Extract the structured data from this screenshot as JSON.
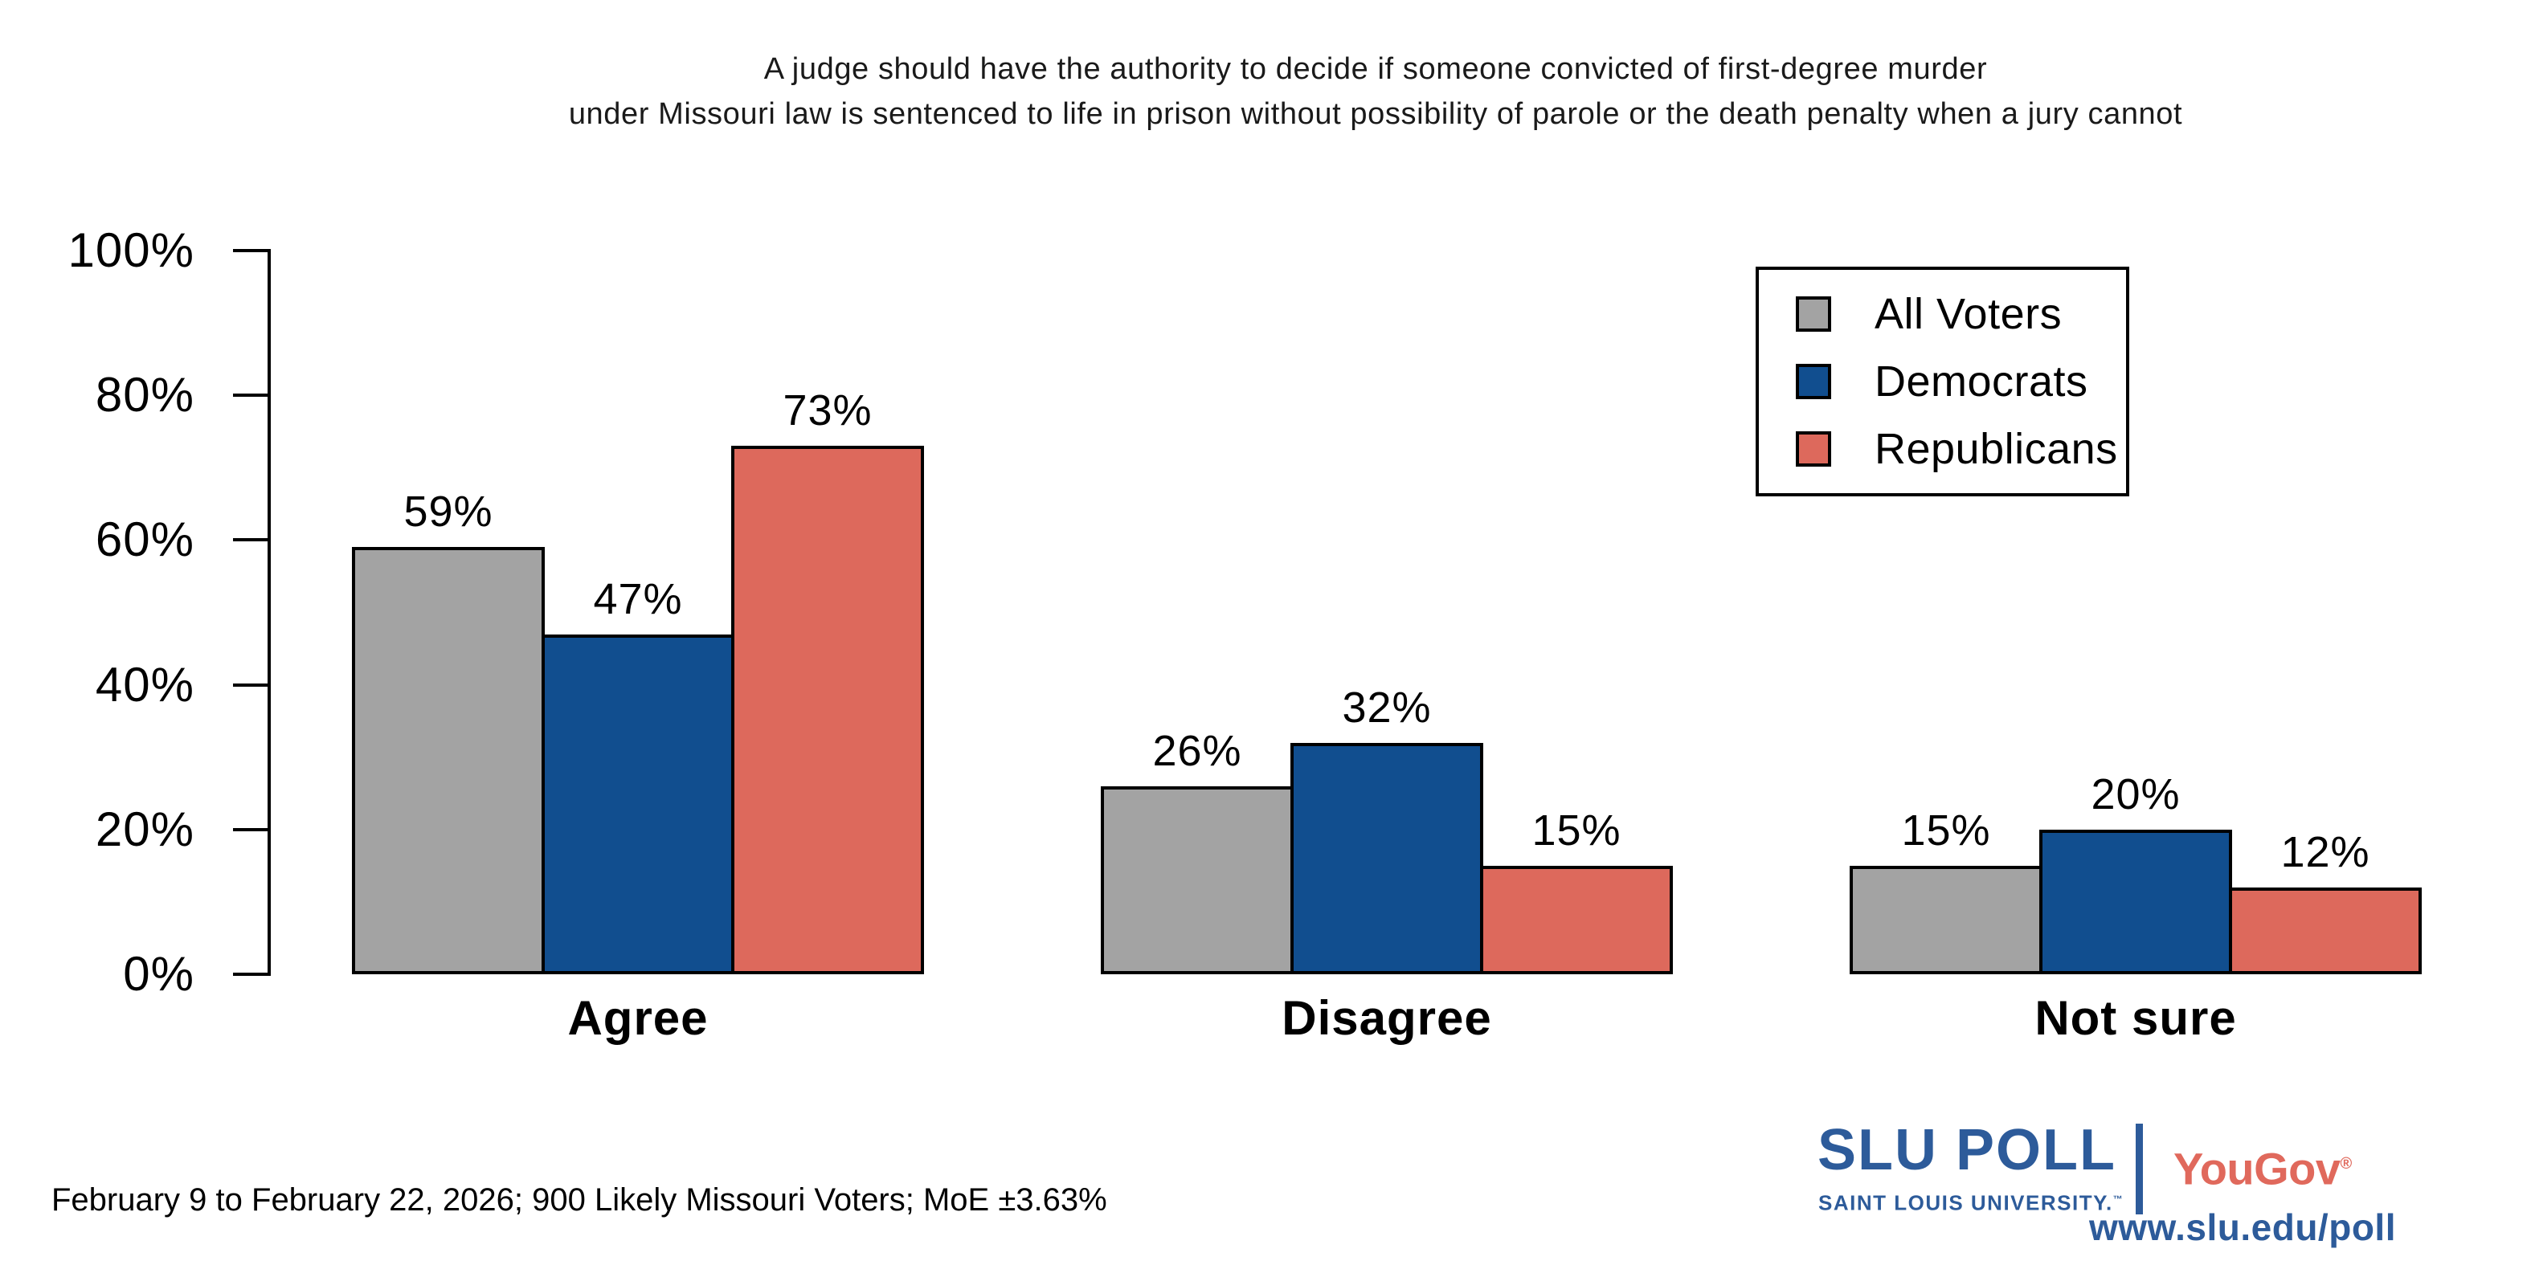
{
  "title": {
    "line1": "A judge should have the authority to decide if someone convicted of first-degree murder",
    "line2": "under Missouri law is sentenced to life in prison without possibility of parole or the death penalty when a jury cannot"
  },
  "chart_data": {
    "type": "bar",
    "categories": [
      "Agree",
      "Disagree",
      "Not sure"
    ],
    "series": [
      {
        "name": "All Voters",
        "color": "#a3a3a3",
        "values": [
          59,
          26,
          15
        ]
      },
      {
        "name": "Democrats",
        "color": "#114e8f",
        "values": [
          47,
          32,
          20
        ]
      },
      {
        "name": "Republicans",
        "color": "#dd695c",
        "values": [
          73,
          15,
          12
        ]
      }
    ],
    "value_suffix": "%",
    "ylim": [
      0,
      100
    ],
    "ytick_values": [
      0,
      20,
      40,
      60,
      80,
      100
    ],
    "ytick_labels": [
      "0%",
      "20%",
      "40%",
      "60%",
      "80%",
      "100%"
    ],
    "bar_outline_color": "#000000",
    "grid": false,
    "legend_position": "top-right"
  },
  "legend": {
    "items": [
      "All Voters",
      "Democrats",
      "Republicans"
    ]
  },
  "footer": {
    "note": "February 9 to February 22, 2026; 900 Likely Missouri Voters; MoE ±3.63%"
  },
  "branding": {
    "slu_poll": "SLU POLL",
    "slu_subtitle": "SAINT LOUIS UNIVERSITY.",
    "trademark": "™",
    "yougov": "YouGov",
    "registered": "®",
    "url": "www.slu.edu/poll",
    "slu_blue": "#2d5b9a",
    "yougov_coral": "#e0695c"
  }
}
